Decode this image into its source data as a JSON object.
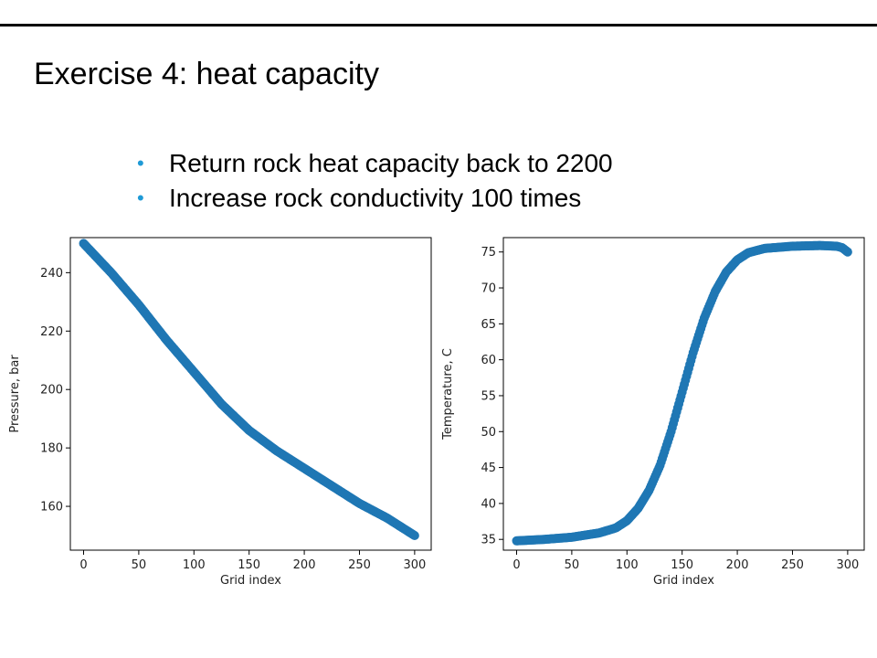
{
  "slide": {
    "title": "Exercise  4: heat capacity",
    "bullets": [
      "Return rock heat capacity back to 2200",
      "Increase rock conductivity 100 times"
    ],
    "bullet_color": "#1f9ad6"
  },
  "chart_data": [
    {
      "type": "scatter",
      "xlabel": "Grid index",
      "ylabel": "Pressure, bar",
      "xlim": [
        -12,
        315
      ],
      "ylim": [
        145,
        252
      ],
      "xticks": [
        0,
        50,
        100,
        150,
        200,
        250,
        300
      ],
      "yticks": [
        160,
        180,
        200,
        220,
        240
      ],
      "grid": false,
      "marker_color": "#1f77b4",
      "series": [
        {
          "x": [
            0,
            10,
            25,
            50,
            75,
            100,
            125,
            150,
            175,
            200,
            225,
            250,
            275,
            300
          ],
          "y": [
            250,
            246,
            240,
            229,
            217,
            206,
            195,
            186,
            179,
            173,
            167,
            161,
            156,
            150
          ]
        }
      ]
    },
    {
      "type": "scatter",
      "xlabel": "Grid index",
      "ylabel": "Temperature, C",
      "xlim": [
        -12,
        315
      ],
      "ylim": [
        33.5,
        77
      ],
      "xticks": [
        0,
        50,
        100,
        150,
        200,
        250,
        300
      ],
      "yticks": [
        35,
        40,
        45,
        50,
        55,
        60,
        65,
        70,
        75
      ],
      "grid": false,
      "marker_color": "#1f77b4",
      "series": [
        {
          "x": [
            0,
            25,
            50,
            75,
            90,
            100,
            110,
            120,
            130,
            140,
            150,
            160,
            170,
            180,
            190,
            200,
            210,
            225,
            250,
            275,
            290,
            295,
            300
          ],
          "y": [
            34.8,
            35.0,
            35.3,
            35.9,
            36.6,
            37.6,
            39.3,
            41.8,
            45.3,
            50.0,
            55.5,
            61.0,
            65.8,
            69.5,
            72.2,
            73.9,
            74.9,
            75.5,
            75.8,
            75.9,
            75.8,
            75.6,
            75.0
          ]
        }
      ]
    }
  ]
}
